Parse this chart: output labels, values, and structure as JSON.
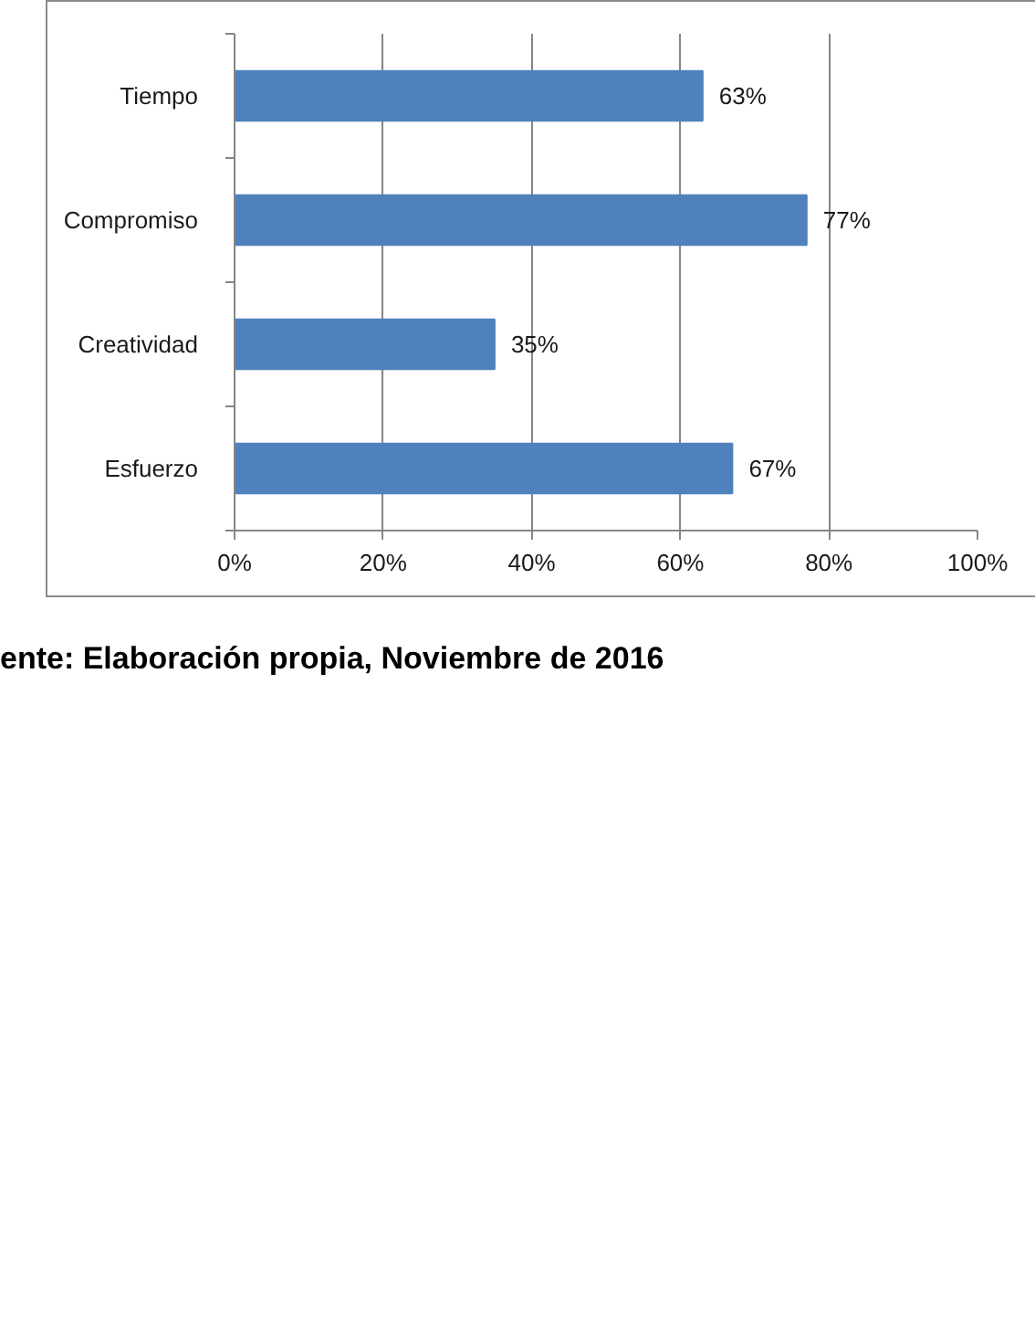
{
  "chart_data": {
    "type": "bar",
    "orientation": "horizontal",
    "categories": [
      "Tiempo",
      "Compromiso",
      "Creatividad",
      "Esfuerzo"
    ],
    "values": [
      63,
      77,
      35,
      67
    ],
    "value_labels": [
      "63%",
      "77%",
      "35%",
      "67%"
    ],
    "color": "#4f81bd",
    "xlim": [
      0,
      100
    ],
    "xticks": [
      {
        "value": 0,
        "label": "0%"
      },
      {
        "value": 20,
        "label": "20%"
      },
      {
        "value": 40,
        "label": "40%"
      },
      {
        "value": 60,
        "label": "60%"
      },
      {
        "value": 80,
        "label": "80%"
      },
      {
        "value": 100,
        "label": "100%"
      }
    ],
    "grid": "x",
    "annotations": [
      "ente: Elaboración propia, Noviembre de 2016"
    ]
  }
}
